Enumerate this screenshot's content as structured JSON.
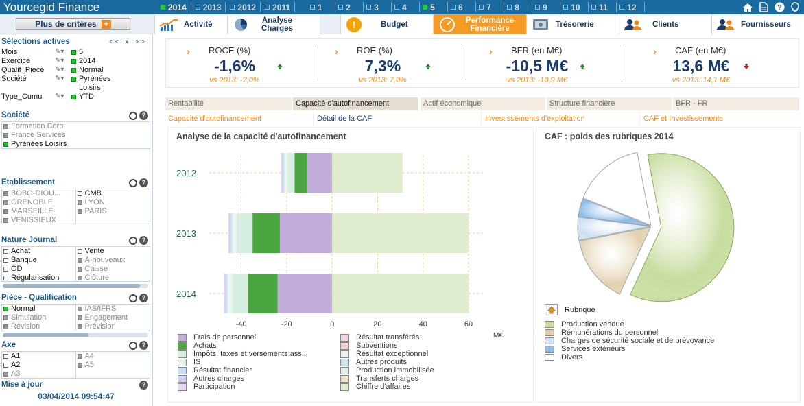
{
  "header": {
    "app_title": "Yourcegid Finance",
    "years": [
      {
        "label": "2014",
        "active": true
      },
      {
        "label": "2013",
        "active": false
      },
      {
        "label": "2012",
        "active": false
      },
      {
        "label": "2011",
        "active": false
      }
    ],
    "months": [
      {
        "label": "1",
        "active": false
      },
      {
        "label": "2",
        "active": false
      },
      {
        "label": "3",
        "active": false
      },
      {
        "label": "4",
        "active": false
      },
      {
        "label": "5",
        "active": true
      },
      {
        "label": "6",
        "active": false
      },
      {
        "label": "7",
        "active": false
      },
      {
        "label": "8",
        "active": false
      },
      {
        "label": "9",
        "active": false
      },
      {
        "label": "10",
        "active": false
      },
      {
        "label": "11",
        "active": false
      },
      {
        "label": "12",
        "active": false
      }
    ]
  },
  "more_criteria": {
    "label": "Plus de critères",
    "plus": "+"
  },
  "tabs": [
    {
      "label": "Activité",
      "icon": "line-chart-icon"
    },
    {
      "label": "Analyse Charges",
      "icon": "pie-chart-icon"
    },
    {
      "label": "Budget",
      "icon": "exclamation-icon"
    },
    {
      "label": "Performance Financière",
      "icon": "gauge-icon"
    },
    {
      "label": "Trésorerie",
      "icon": "safe-icon"
    },
    {
      "label": "Clients",
      "icon": "people-icon"
    },
    {
      "label": "Fournisseurs",
      "icon": "people-icon"
    }
  ],
  "sidebar": {
    "active_title": "Sélections actives",
    "nav": "<<  x  >>",
    "selections": [
      {
        "key": "Mois",
        "value": "5"
      },
      {
        "key": "Exercice",
        "value": "2014"
      },
      {
        "key": "Qualif_Piece",
        "value": "Normal"
      },
      {
        "key": "Société",
        "value": "Pyrénées Loisirs"
      },
      {
        "key": "Type_Cumul",
        "value": "YTD"
      }
    ],
    "societe": {
      "title": "Société",
      "items": [
        "Formation Corp",
        "France Services",
        "Pyrénées Loisirs"
      ]
    },
    "etablissement": {
      "title": "Etablissement",
      "col1": [
        "BOBO-DIOU...",
        "GRENOBLE",
        "MARSEILLE",
        "VENISSIEUX"
      ],
      "col2": [
        "CMB",
        "LYON",
        "PARIS"
      ]
    },
    "nature_journal": {
      "title": "Nature Journal",
      "col1": [
        "Achat",
        "Banque",
        "OD",
        "Régularisation"
      ],
      "col2": [
        "Vente",
        "A-nouveaux",
        "Caisse",
        "Clôture"
      ]
    },
    "piece": {
      "title": "Pièce - Qualification",
      "col1": [
        "Normal",
        "Simulation",
        "Révision"
      ],
      "col2": [
        "IAS/IFRS",
        "Engagement",
        "Prévision"
      ]
    },
    "axe": {
      "title": "Axe",
      "col1": [
        "A1",
        "A2",
        "A3"
      ],
      "col2": [
        "A4",
        "A5"
      ]
    },
    "update": {
      "title": "Mise à jour",
      "timestamp": "03/04/2014 09:54:47"
    }
  },
  "kpis": [
    {
      "name": "ROCE (%)",
      "value": "-1,6%",
      "compare": "vs 2013: -2,0%",
      "trend": "up"
    },
    {
      "name": "ROE (%)",
      "value": "7,3%",
      "compare": "vs 2013: 7,0%",
      "trend": "up"
    },
    {
      "name": "BFR (en M€)",
      "value": "-10,5 M€",
      "compare": "vs 2013: -10,9 M€",
      "trend": "up"
    },
    {
      "name": "CAF (en M€)",
      "value": "13,6 M€",
      "compare": "vs 2013: 14,1 M€",
      "trend": "down"
    }
  ],
  "subtabs": [
    "Rentabilité",
    "Capacité d'autofinancement",
    "Actif économique",
    "Structure financière",
    "BFR - FR"
  ],
  "subtabs2": [
    "Capacité d'autofinancement",
    "Détail de la CAF",
    "Investissements d'exploitation",
    "CAF et Investissements"
  ],
  "chart_data": [
    {
      "type": "bar",
      "orientation": "horizontal",
      "stacked": true,
      "title": "Analyse de la capacité d'autofinancement",
      "xlabel": "M€",
      "xlim": [
        -45,
        60
      ],
      "xticks": [
        "-40",
        "-20",
        "0",
        "20",
        "40",
        "60"
      ],
      "categories": [
        "2012",
        "2013",
        "2014"
      ],
      "series": [
        {
          "name": "Frais de personnel",
          "color": "#c3aedb",
          "values": [
            -11,
            -23,
            -24
          ]
        },
        {
          "name": "Achats",
          "color": "#4aa540",
          "values": [
            -5.5,
            -12,
            -13
          ]
        },
        {
          "name": "Impôts, taxes et versements ass...",
          "color": "#d6efe0",
          "values": [
            -3,
            -7,
            -7
          ]
        },
        {
          "name": "IS",
          "color": "#e9f6ef",
          "values": [
            -1.5,
            -2,
            -2
          ]
        },
        {
          "name": "Résultat financier",
          "color": "#c7e0f2",
          "values": [
            -0.6,
            -0.6,
            -0.6
          ]
        },
        {
          "name": "Autres charges",
          "color": "#d3d0ef",
          "values": [
            -0.6,
            -0.7,
            -0.7
          ]
        },
        {
          "name": "Participation",
          "color": "#e6d7f0",
          "values": [
            -0.3,
            -0.3,
            -0.3
          ]
        },
        {
          "name": "Résultat transférés",
          "color": "#f1d3e6",
          "values": [
            0,
            0,
            0
          ]
        },
        {
          "name": "Subventions",
          "color": "#f1d3d3",
          "values": [
            0,
            0,
            0
          ]
        },
        {
          "name": "Résultat exceptionnel",
          "color": "#eef0f4",
          "values": [
            0,
            0,
            0
          ]
        },
        {
          "name": "Autres produits",
          "color": "#cbe5ef",
          "values": [
            0,
            0,
            0
          ]
        },
        {
          "name": "Production immobilisée",
          "color": "#e1eef0",
          "values": [
            0,
            0,
            0
          ]
        },
        {
          "name": "Transferts charges",
          "color": "#efe1cd",
          "values": [
            0,
            0,
            0
          ]
        },
        {
          "name": "Chiffre d'affaires",
          "color": "#e1edcf",
          "values": [
            31,
            60,
            60
          ]
        }
      ]
    },
    {
      "type": "pie",
      "title": "CAF : poids des rubriques  2014",
      "legend_title": "Rubrique",
      "slices": [
        {
          "name": "Production vendue",
          "value": 60,
          "color": "#c8dc9e"
        },
        {
          "name": "Rémunérations du personnel",
          "value": 15,
          "color": "#e3d2b0"
        },
        {
          "name": "Charges de sécurité sociale et de prévoyance",
          "value": 5,
          "color": "#cfe0f2"
        },
        {
          "name": "Services extérieurs",
          "value": 4,
          "color": "#8dbbe8"
        },
        {
          "name": "Divers",
          "value": 16,
          "color": "#ffffff"
        }
      ]
    }
  ]
}
